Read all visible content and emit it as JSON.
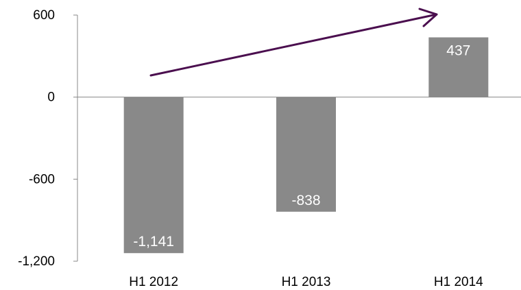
{
  "chart_data": {
    "type": "bar",
    "title": "",
    "xlabel": "",
    "ylabel": "",
    "categories": [
      "H1 2012",
      "H1 2013",
      "H1 2014"
    ],
    "values": [
      -1141,
      -838,
      437
    ],
    "data_labels": [
      "-1,141",
      "-838",
      "437"
    ],
    "ylim": [
      -1200,
      600
    ],
    "yticks": [
      600,
      0,
      -600,
      -1200
    ],
    "ytick_labels": [
      "600",
      "0",
      "-600",
      "-1,200"
    ],
    "grid": false,
    "legend": "none",
    "annotation": "upward trend arrow",
    "colors": {
      "bar": "#898989",
      "data_label": "#ffffff",
      "axis": "#888888",
      "arrow": "#4b0f4f"
    }
  }
}
